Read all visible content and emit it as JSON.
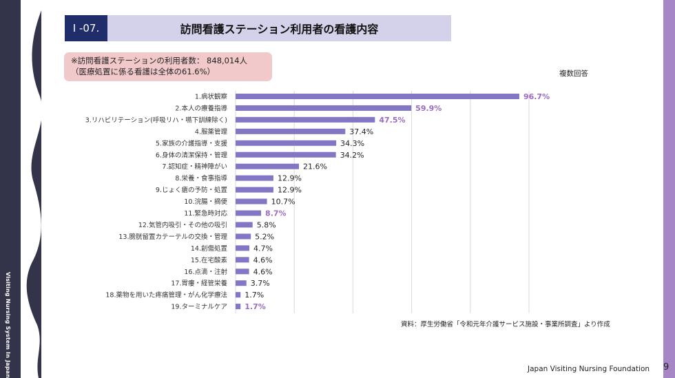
{
  "sidebar": {
    "text": "Visiting Nursing System In Japan"
  },
  "header": {
    "number": "Ⅰ -07.",
    "title": "訪問看護ステーション利用者の看護内容"
  },
  "note": {
    "line1": "※訪問看護ステーションの利用者数： 848,014人",
    "line2": "（医療処置に係る看護は全体の61.6%）"
  },
  "multiple_answer": "複数回答",
  "source": "資料：厚生労働省「令和元年介護サービス施設・事業所調査」より作成",
  "footer": {
    "organization": "Japan Visiting Nursing Foundation",
    "page": "9"
  },
  "colors": {
    "bar": "#8177c4",
    "highlight": "#9a6ac4",
    "sidebar": "#33334a",
    "accent": "#a686c4",
    "title_num_bg": "#1f2d6b"
  },
  "chart_data": {
    "type": "bar",
    "orientation": "horizontal",
    "unit": "%",
    "xlim": [
      0,
      100
    ],
    "grid": true,
    "categories": [
      "1.病状観察",
      "2.本人の療養指導",
      "3.リハビリテーション(呼吸リハ・嚥下訓練除く)",
      "4.服薬管理",
      "5.家族の介護指導・支援",
      "6.身体の清潔保持・管理",
      "7.認知症・精神障がい",
      "8.栄養・食事指導",
      "9.じょく瘡の予防・処置",
      "10.浣腸・摘便",
      "11.緊急時対応",
      "12.気管内吸引・その他の吸引",
      "13.膀胱留置カテーテルの交換・管理",
      "14.創傷処置",
      "15.在宅酸素",
      "16.点滴・注射",
      "17.胃瘻・経管栄養",
      "18.薬物を用いた疼痛管理・がん化学療法",
      "19.ターミナルケア"
    ],
    "values": [
      96.7,
      59.9,
      47.5,
      37.4,
      34.3,
      34.2,
      21.6,
      12.9,
      12.9,
      10.7,
      8.7,
      5.8,
      5.2,
      4.7,
      4.6,
      4.6,
      3.7,
      1.7,
      1.7
    ],
    "labels": [
      "96.7%",
      "59.9%",
      "47.5%",
      "37.4%",
      "34.3%",
      "34.2%",
      "21.6%",
      "12.9%",
      "12.9%",
      "10.7%",
      "8.7%",
      "5.8%",
      "5.2%",
      "4.7%",
      "4.6%",
      "4.6%",
      "3.7%",
      "1.7%",
      "1.7%"
    ],
    "highlighted": [
      true,
      true,
      true,
      false,
      false,
      false,
      false,
      false,
      false,
      false,
      true,
      false,
      false,
      false,
      false,
      false,
      false,
      false,
      true
    ]
  }
}
